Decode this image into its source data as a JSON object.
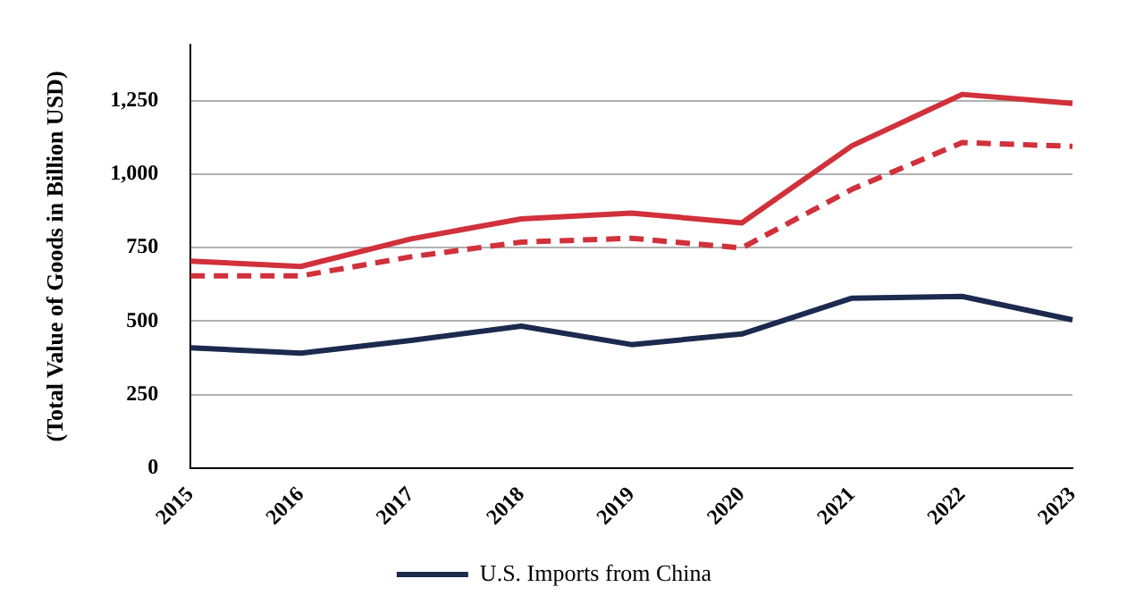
{
  "chart_data": {
    "type": "line",
    "ylabel": "(Total Value of Goods in Billion USD)",
    "categories": [
      "2015",
      "2016",
      "2017",
      "2018",
      "2019",
      "2020",
      "2021",
      "2022",
      "2023"
    ],
    "series": [
      {
        "color": "#d0313b",
        "values": [
          704,
          686,
          780,
          848,
          868,
          834,
          1097,
          1272,
          1241
        ]
      },
      {
        "color": "#d0313b",
        "line_style": "dashed",
        "values": [
          654,
          654,
          719,
          769,
          782,
          749,
          949,
          1108,
          1095
        ]
      },
      {
        "name": "U.S. Imports from China",
        "color": "#1b2a4e",
        "values": [
          409,
          391,
          434,
          483,
          420,
          456,
          578,
          584,
          504
        ]
      }
    ],
    "ylim": [
      0,
      1440
    ],
    "yticks": [
      {
        "value": 0,
        "label": "0"
      },
      {
        "value": 250,
        "label": "250"
      },
      {
        "value": 500,
        "label": "500"
      },
      {
        "value": 750,
        "label": "750"
      },
      {
        "value": 1000,
        "label": "1,000"
      },
      {
        "value": 1250,
        "label": "1,250"
      }
    ],
    "grid": "y",
    "legend": "bottom",
    "marker": "none"
  }
}
